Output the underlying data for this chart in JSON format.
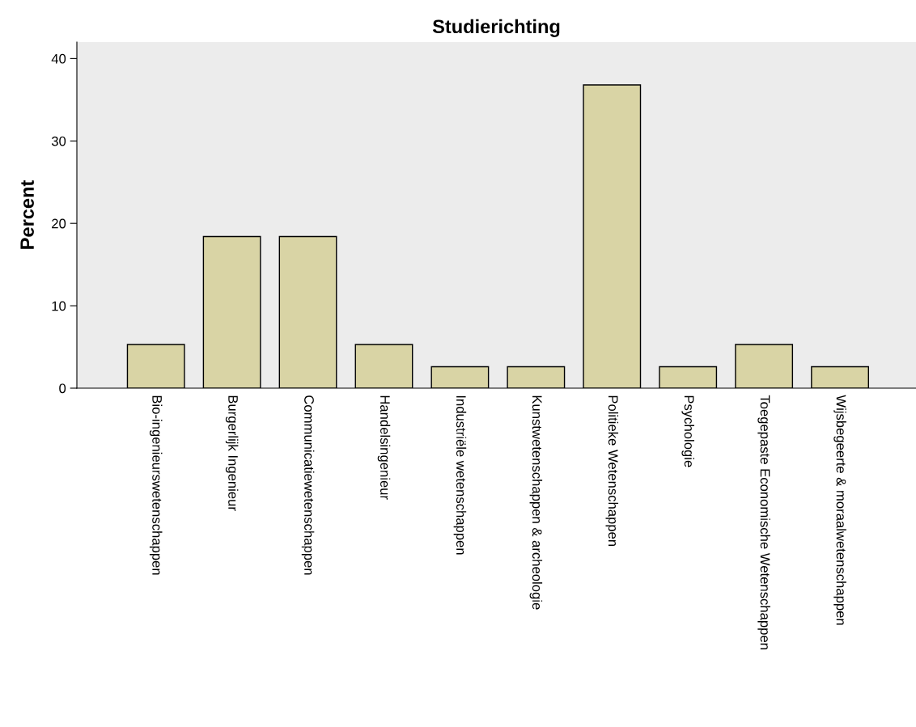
{
  "chart_data": {
    "type": "bar",
    "title": "Studierichting",
    "ylabel": "Percent",
    "categories": [
      "Bio-ingenieurswetenschappen",
      "Burgerlijk Ingenieur",
      "Communicatiewetenschappen",
      "Handelsingenieur",
      "Industriële wetenschappen",
      "Kunstwetenschappen & archeologie",
      "Politieke Wetenschappen",
      "Psychologie",
      "Toegepaste Economische Wetenschappen",
      "Wijsbegeerte & moraalwetenschappen"
    ],
    "values": [
      5.3,
      18.4,
      18.4,
      5.3,
      2.6,
      2.6,
      36.8,
      2.6,
      5.3,
      2.6
    ],
    "color": "#d9d4a5",
    "ylim": [
      0,
      42
    ],
    "yticks": [
      0,
      10,
      20,
      30,
      40
    ],
    "grid": false
  }
}
